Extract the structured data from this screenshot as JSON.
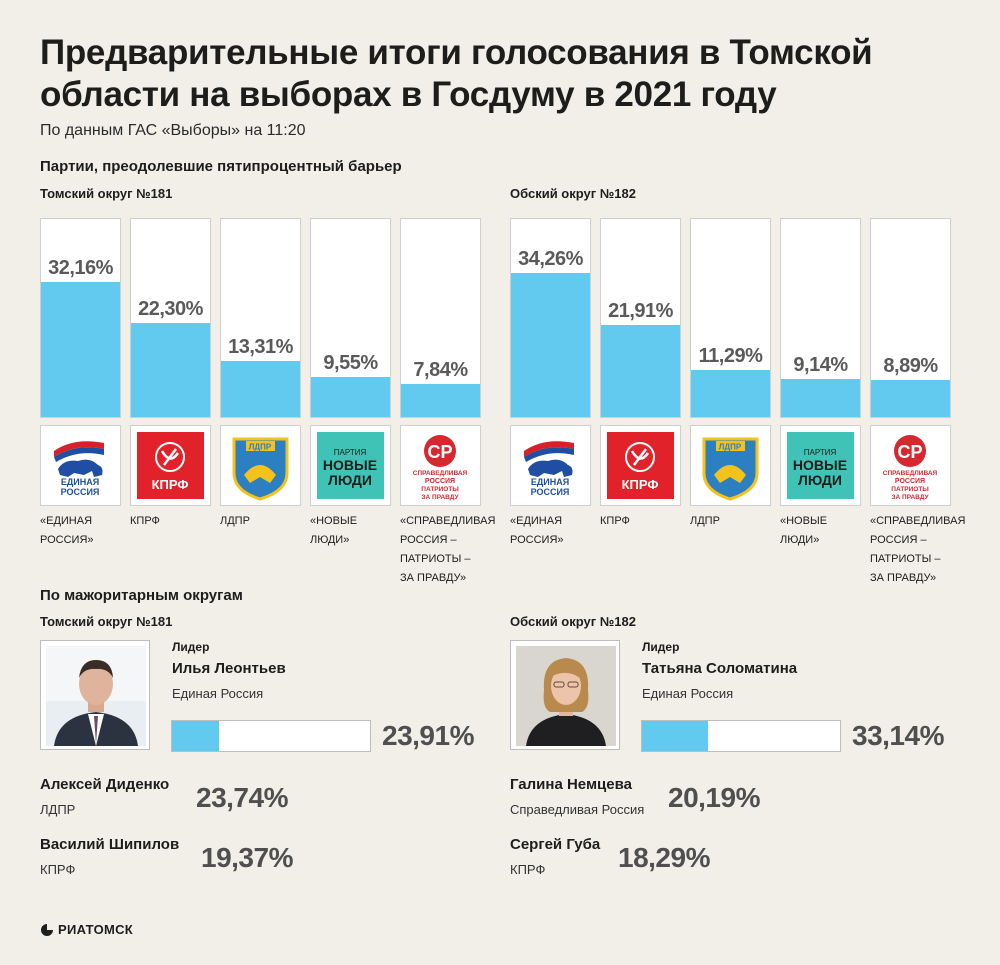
{
  "title": "Предварительные итоги голосования в Томской области на выборах в Госдуму в 2021 году",
  "subtitle": "По данным ГАС «Выборы» на 11:20",
  "parties_heading": "Партии, преодолевшие пятипроцентный барьер",
  "majoritarian_heading": "По мажоритарным округам",
  "leader_label": "Лидер",
  "brand": "РИАТОМСК",
  "colors": {
    "bar": "#62c9ef",
    "background": "#f1efe8"
  },
  "chart_data": [
    {
      "type": "bar",
      "title": "Томский округ №181",
      "categories": [
        "«Единая Россия»",
        "КПРФ",
        "ЛДПР",
        "«Новые люди»",
        "«Справедливая Россия – Патриоты – За правду»"
      ],
      "values": [
        32.16,
        22.3,
        13.31,
        9.55,
        7.84
      ],
      "labels": [
        "32,16%",
        "22,30%",
        "13,31%",
        "9,55%",
        "7,84%"
      ],
      "ylim": [
        0,
        100
      ]
    },
    {
      "type": "bar",
      "title": "Обский округ №182",
      "categories": [
        "«Единая Россия»",
        "КПРФ",
        "ЛДПР",
        "«Новые люди»",
        "«Справедливая Россия – Патриоты – За правду»"
      ],
      "values": [
        34.26,
        21.91,
        11.29,
        9.14,
        8.89
      ],
      "labels": [
        "34,26%",
        "21,91%",
        "11,29%",
        "9,14%",
        "8,89%"
      ],
      "ylim": [
        0,
        100
      ]
    }
  ],
  "party_labels": [
    [
      "«ЕДИНАЯ",
      "РОССИЯ»"
    ],
    [
      "КПРФ"
    ],
    [
      "ЛДПР"
    ],
    [
      "«НОВЫЕ",
      "ЛЮДИ»"
    ],
    [
      "«СПРАВЕДЛИВАЯ",
      "РОССИЯ –",
      "ПАТРИОТЫ –",
      "ЗА ПРАВДУ»"
    ]
  ],
  "logos": {
    "er": {
      "icon": "united-russia-logo",
      "line1": "ЕДИНАЯ",
      "line2": "РОССИЯ"
    },
    "kprf": {
      "icon": "kprf-logo",
      "text": "КПРФ"
    },
    "ldpr": {
      "icon": "ldpr-logo",
      "text": "ЛДПР"
    },
    "nl": {
      "icon": "new-people-logo",
      "line1": "ПАРТИЯ",
      "line2": "НОВЫЕ",
      "line3": "ЛЮДИ"
    },
    "sr": {
      "icon": "sr-logo",
      "text": "СР",
      "line1": "СПРАВЕДЛИВАЯ",
      "line2": "РОССИЯ",
      "line3": "ПАТРИОТЫ",
      "line4": "ЗА ПРАВДУ"
    }
  },
  "districts": [
    {
      "name": "Томский округ №181",
      "leader": {
        "name": "Илья Леонтьев",
        "party": "Единая Россия",
        "value": 23.91,
        "label": "23,91%"
      },
      "others": [
        {
          "name": "Алексей Диденко",
          "party": "ЛДПР",
          "label": "23,74%"
        },
        {
          "name": "Василий Шипилов",
          "party": "КПРФ",
          "label": "19,37%"
        }
      ]
    },
    {
      "name": "Обский округ №182",
      "leader": {
        "name": "Татьяна Соломатина",
        "party": "Единая Россия",
        "value": 33.14,
        "label": "33,14%"
      },
      "others": [
        {
          "name": "Галина Немцева",
          "party": "Справедливая Россия",
          "label": "20,19%"
        },
        {
          "name": "Сергей Губа",
          "party": "КПРФ",
          "label": "18,29%"
        }
      ]
    }
  ]
}
